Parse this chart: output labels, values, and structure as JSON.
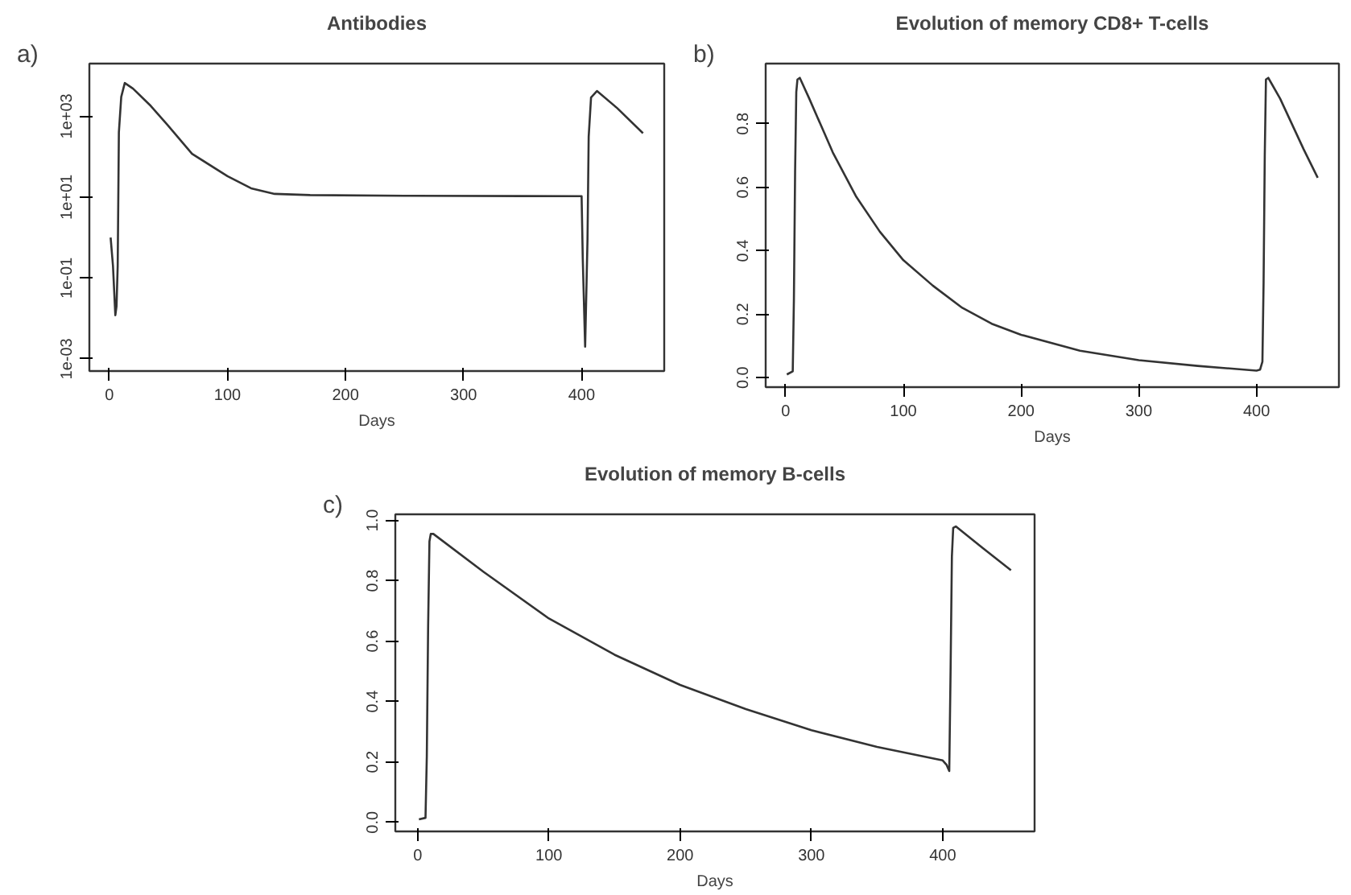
{
  "chart_data": [
    {
      "type": "line",
      "title": "Antibodies",
      "xlabel": "Days",
      "annotations": [
        "a)"
      ],
      "log": "y",
      "xlim": [
        -17,
        470
      ],
      "ylim": [
        0.0005,
        20000
      ],
      "xticks": [
        0,
        100,
        200,
        300,
        400
      ],
      "yticks": [
        {
          "value": 0.001,
          "label": "1e-03"
        },
        {
          "value": 0.1,
          "label": "1e-01"
        },
        {
          "value": 10,
          "label": "1e+01"
        },
        {
          "value": 1000,
          "label": "1e+03"
        }
      ],
      "x": [
        1,
        3,
        5,
        6,
        7,
        8,
        10,
        13,
        20,
        35,
        49,
        70,
        100,
        120,
        140,
        170,
        250,
        350,
        400,
        401,
        403,
        405,
        406,
        408,
        413,
        430,
        452
      ],
      "series": [
        {
          "color": "#333333",
          "values": [
            1.0,
            0.2,
            0.012,
            0.02,
            0.2,
            400,
            3000,
            6600,
            4800,
            1800,
            620,
            117,
            33,
            16.5,
            12,
            11.2,
            10.8,
            10.6,
            10.5,
            0.29,
            0.002,
            0.9,
            310,
            2900,
            4200,
            1600,
            380
          ]
        }
      ]
    },
    {
      "type": "line",
      "title": "Evolution of memory CD8+ T-cells",
      "xlabel": "Days",
      "annotations": [
        "b)"
      ],
      "xlim": [
        -17,
        470
      ],
      "ylim": [
        -0.03,
        0.99
      ],
      "xticks": [
        0,
        100,
        200,
        300,
        400
      ],
      "yticks": [
        {
          "value": 0,
          "label": "0.0"
        },
        0.2,
        0.4,
        0.6,
        0.8
      ],
      "x": [
        1,
        6,
        7,
        8,
        9,
        10,
        12,
        20,
        40,
        60,
        80,
        100,
        125,
        150,
        175,
        200,
        250,
        300,
        350,
        400,
        403,
        405,
        406,
        407,
        408,
        410,
        420,
        440,
        452
      ],
      "series": [
        {
          "color": "#333333",
          "values": [
            0.01,
            0.02,
            0.25,
            0.65,
            0.9,
            0.94,
            0.945,
            0.88,
            0.71,
            0.57,
            0.46,
            0.37,
            0.29,
            0.22,
            0.17,
            0.135,
            0.085,
            0.055,
            0.037,
            0.022,
            0.025,
            0.05,
            0.3,
            0.7,
            0.94,
            0.945,
            0.88,
            0.72,
            0.63
          ]
        }
      ]
    },
    {
      "type": "line",
      "title": "Evolution of memory B-cells",
      "xlabel": "Days",
      "annotations": [
        "c)"
      ],
      "xlim": [
        -17,
        470
      ],
      "ylim": [
        -0.03,
        1.02
      ],
      "xticks": [
        0,
        100,
        200,
        300,
        400
      ],
      "yticks": [
        {
          "value": 0,
          "label": "0.0"
        },
        0.2,
        0.4,
        0.6,
        0.8,
        {
          "value": 1,
          "label": "1.0"
        }
      ],
      "x": [
        1,
        6,
        7,
        8,
        9,
        10,
        12,
        50,
        100,
        150,
        200,
        250,
        300,
        350,
        400,
        403,
        405,
        406,
        407,
        408,
        410,
        430,
        452
      ],
      "series": [
        {
          "color": "#333333",
          "values": [
            0.01,
            0.015,
            0.22,
            0.65,
            0.93,
            0.955,
            0.955,
            0.83,
            0.675,
            0.555,
            0.455,
            0.375,
            0.305,
            0.25,
            0.205,
            0.19,
            0.17,
            0.5,
            0.88,
            0.975,
            0.98,
            0.91,
            0.835
          ]
        }
      ]
    }
  ]
}
